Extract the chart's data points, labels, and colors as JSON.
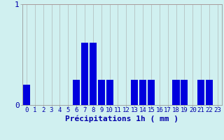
{
  "hours": [
    0,
    1,
    2,
    3,
    4,
    5,
    6,
    7,
    8,
    9,
    10,
    11,
    12,
    13,
    14,
    15,
    16,
    17,
    18,
    19,
    20,
    21,
    22,
    23
  ],
  "values": [
    0.2,
    0,
    0,
    0,
    0,
    0,
    0.25,
    0.62,
    0.62,
    0.25,
    0.25,
    0,
    0,
    0.25,
    0.25,
    0.25,
    0,
    0,
    0.25,
    0.25,
    0,
    0.25,
    0.25,
    0
  ],
  "bar_color": "#0000dd",
  "bg_color": "#d0f0f0",
  "grid_color_v": "#b0b8b8",
  "grid_color_h": "#ffaaaa",
  "xlabel": "Précipitations 1h ( mm )",
  "ylim": [
    0,
    1.0
  ],
  "xlim": [
    -0.5,
    23.5
  ],
  "bar_width": 0.85,
  "xlabel_fontsize": 8,
  "ytick_fontsize": 8,
  "xtick_fontsize": 6.5
}
